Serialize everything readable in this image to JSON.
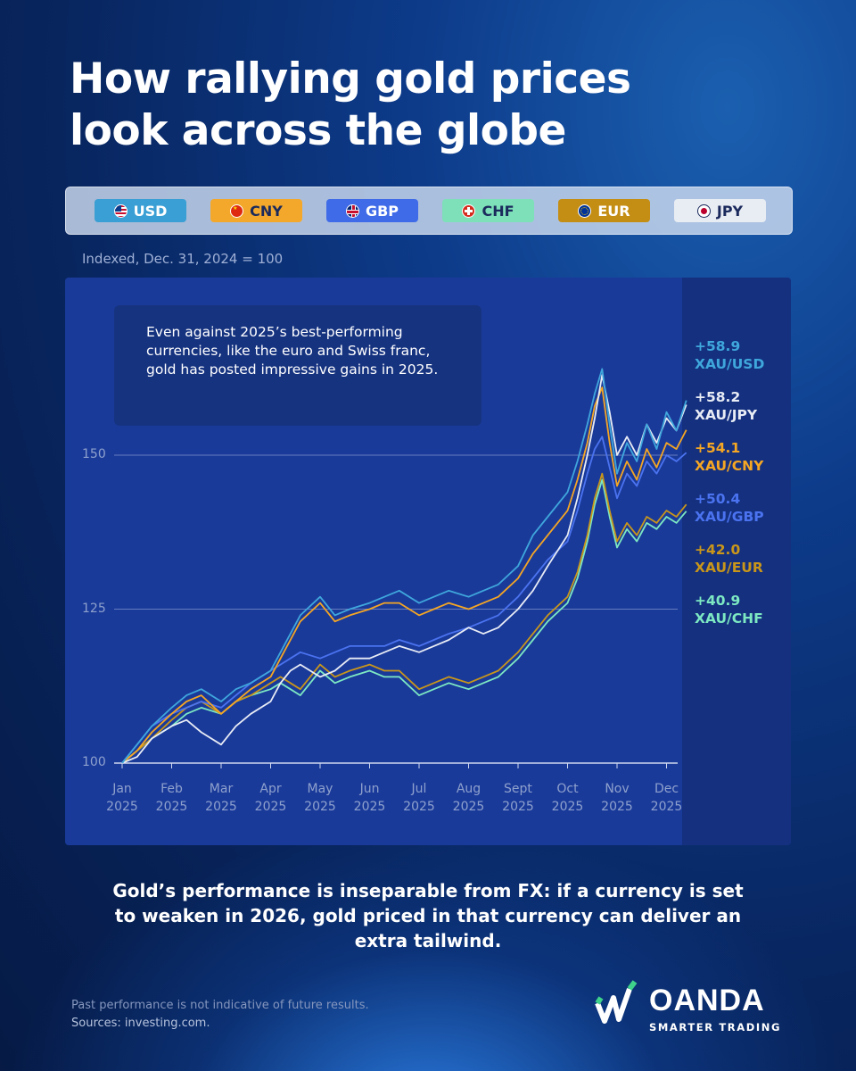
{
  "title_lines": [
    "How rallying gold prices",
    "look across the globe"
  ],
  "legend": [
    {
      "label": "USD",
      "bg": "#3a9fd4",
      "fg": "#ffffff",
      "icon": "us-flag-icon"
    },
    {
      "label": "CNY",
      "bg": "#f3a82c",
      "fg": "#1b2a5c",
      "icon": "china-flag-icon"
    },
    {
      "label": "GBP",
      "bg": "#3f6be8",
      "fg": "#ffffff",
      "icon": "uk-flag-icon"
    },
    {
      "label": "CHF",
      "bg": "#7de0b8",
      "fg": "#1b2a5c",
      "icon": "swiss-flag-icon"
    },
    {
      "label": "EUR",
      "bg": "#c48e14",
      "fg": "#ffffff",
      "icon": "eu-flag-icon"
    },
    {
      "label": "JPY",
      "bg": "#e8ecf3",
      "fg": "#1b2a5c",
      "icon": "japan-flag-icon"
    }
  ],
  "subtitle": "Indexed, Dec. 31, 2024 = 100",
  "annotation": "Even against 2025’s best-performing currencies, like the euro and Swiss franc, gold has posted impressive gains in 2025.",
  "bottom_text": "Gold’s performance is inseparable from FX: if a currency is set to weaken in 2026, gold priced in that currency can deliver an extra tailwind.",
  "disclaimer": "Past performance is not indicative of future results.",
  "sources": "Sources: investing.com.",
  "logo_word": "OANDA",
  "logo_tagline": "SMARTER TRADING",
  "colors": {
    "USD": "#3fa7dc",
    "JPY": "#e8ecf5",
    "CNY": "#f5a623",
    "GBP": "#4b73f0",
    "EUR": "#c9961a",
    "CHF": "#7de8c2"
  },
  "chart_data": {
    "type": "line",
    "ylim": [
      100,
      160
    ],
    "yticks": [
      100,
      125,
      150
    ],
    "x_tick_labels": [
      [
        "Jan",
        "2025"
      ],
      [
        "Feb",
        "2025"
      ],
      [
        "Mar",
        "2025"
      ],
      [
        "Apr",
        "2025"
      ],
      [
        "May",
        "2025"
      ],
      [
        "Jun",
        "2025"
      ],
      [
        "Jul",
        "2025"
      ],
      [
        "Aug",
        "2025"
      ],
      [
        "Sept",
        "2025"
      ],
      [
        "Oct",
        "2025"
      ],
      [
        "Nov",
        "2025"
      ],
      [
        "Dec",
        "2025"
      ]
    ],
    "x_months": [
      0,
      1,
      2,
      3,
      4,
      5,
      6,
      7,
      8,
      9,
      10,
      11
    ],
    "series": [
      {
        "name": "XAU/USD",
        "end_label": "+58.9",
        "color_key": "USD",
        "x": [
          0,
          0.3,
          0.6,
          1,
          1.3,
          1.6,
          2,
          2.3,
          2.6,
          3,
          3.2,
          3.4,
          3.6,
          4,
          4.3,
          4.6,
          5,
          5.3,
          5.6,
          6,
          6.3,
          6.6,
          7,
          7.3,
          7.6,
          8,
          8.3,
          8.6,
          9,
          9.2,
          9.4,
          9.55,
          9.7,
          9.85,
          10,
          10.2,
          10.4,
          10.6,
          10.8,
          11,
          11.2,
          11.4
        ],
        "y": [
          100,
          103,
          106,
          109,
          111,
          112,
          110,
          112,
          113,
          115,
          118,
          121,
          124,
          127,
          124,
          125,
          126,
          127,
          128,
          126,
          127,
          128,
          127,
          128,
          129,
          132,
          137,
          140,
          144,
          149,
          155,
          160,
          164,
          155,
          147,
          152,
          149,
          155,
          151,
          157,
          154,
          158.9
        ]
      },
      {
        "name": "XAU/JPY",
        "end_label": "+58.2",
        "color_key": "JPY",
        "x": [
          0,
          0.3,
          0.6,
          1,
          1.3,
          1.6,
          2,
          2.3,
          2.6,
          3,
          3.2,
          3.4,
          3.6,
          4,
          4.3,
          4.6,
          5,
          5.3,
          5.6,
          6,
          6.3,
          6.6,
          7,
          7.3,
          7.6,
          8,
          8.3,
          8.6,
          9,
          9.2,
          9.4,
          9.55,
          9.7,
          9.85,
          10,
          10.2,
          10.4,
          10.6,
          10.8,
          11,
          11.2,
          11.4
        ],
        "y": [
          100,
          101,
          104,
          106,
          107,
          105,
          103,
          106,
          108,
          110,
          113,
          115,
          116,
          114,
          115,
          117,
          117,
          118,
          119,
          118,
          119,
          120,
          122,
          121,
          122,
          125,
          128,
          132,
          137,
          143,
          150,
          156,
          163,
          157,
          150,
          153,
          150,
          155,
          152,
          156,
          154,
          158.2
        ]
      },
      {
        "name": "XAU/CNY",
        "end_label": "+54.1",
        "color_key": "CNY",
        "x": [
          0,
          0.3,
          0.6,
          1,
          1.3,
          1.6,
          2,
          2.3,
          2.6,
          3,
          3.2,
          3.4,
          3.6,
          4,
          4.3,
          4.6,
          5,
          5.3,
          5.6,
          6,
          6.3,
          6.6,
          7,
          7.3,
          7.6,
          8,
          8.3,
          8.6,
          9,
          9.2,
          9.4,
          9.55,
          9.7,
          9.85,
          10,
          10.2,
          10.4,
          10.6,
          10.8,
          11,
          11.2,
          11.4
        ],
        "y": [
          100,
          102,
          105,
          108,
          110,
          111,
          108,
          110,
          112,
          114,
          117,
          120,
          123,
          126,
          123,
          124,
          125,
          126,
          126,
          124,
          125,
          126,
          125,
          126,
          127,
          130,
          134,
          137,
          141,
          146,
          152,
          158,
          161,
          152,
          145,
          149,
          146,
          151,
          148,
          152,
          151,
          154.1
        ]
      },
      {
        "name": "XAU/GBP",
        "end_label": "+50.4",
        "color_key": "GBP",
        "x": [
          0,
          0.3,
          0.6,
          1,
          1.3,
          1.6,
          2,
          2.3,
          2.6,
          3,
          3.2,
          3.4,
          3.6,
          4,
          4.3,
          4.6,
          5,
          5.3,
          5.6,
          6,
          6.3,
          6.6,
          7,
          7.3,
          7.6,
          8,
          8.3,
          8.6,
          9,
          9.2,
          9.4,
          9.55,
          9.7,
          9.85,
          10,
          10.2,
          10.4,
          10.6,
          10.8,
          11,
          11.2,
          11.4
        ],
        "y": [
          100,
          103,
          106,
          108,
          109,
          110,
          109,
          111,
          113,
          115,
          116,
          117,
          118,
          117,
          118,
          119,
          119,
          119,
          120,
          119,
          120,
          121,
          122,
          123,
          124,
          127,
          130,
          133,
          136,
          141,
          147,
          151,
          153,
          148,
          143,
          147,
          145,
          149,
          147,
          150,
          149,
          150.4
        ]
      },
      {
        "name": "XAU/EUR",
        "end_label": "+42.0",
        "color_key": "EUR",
        "x": [
          0,
          0.3,
          0.6,
          1,
          1.3,
          1.6,
          2,
          2.3,
          2.6,
          3,
          3.2,
          3.4,
          3.6,
          4,
          4.3,
          4.6,
          5,
          5.3,
          5.6,
          6,
          6.3,
          6.6,
          7,
          7.3,
          7.6,
          8,
          8.3,
          8.6,
          9,
          9.2,
          9.4,
          9.55,
          9.7,
          9.85,
          10,
          10.2,
          10.4,
          10.6,
          10.8,
          11,
          11.2,
          11.4
        ],
        "y": [
          100,
          102,
          104,
          107,
          109,
          110,
          108,
          110,
          111,
          113,
          114,
          113,
          112,
          116,
          114,
          115,
          116,
          115,
          115,
          112,
          113,
          114,
          113,
          114,
          115,
          118,
          121,
          124,
          127,
          131,
          137,
          143,
          147,
          141,
          136,
          139,
          137,
          140,
          139,
          141,
          140,
          142.0
        ]
      },
      {
        "name": "XAU/CHF",
        "end_label": "+40.9",
        "color_key": "CHF",
        "x": [
          0,
          0.3,
          0.6,
          1,
          1.3,
          1.6,
          2,
          2.3,
          2.6,
          3,
          3.2,
          3.4,
          3.6,
          4,
          4.3,
          4.6,
          5,
          5.3,
          5.6,
          6,
          6.3,
          6.6,
          7,
          7.3,
          7.6,
          8,
          8.3,
          8.6,
          9,
          9.2,
          9.4,
          9.55,
          9.7,
          9.85,
          10,
          10.2,
          10.4,
          10.6,
          10.8,
          11,
          11.2,
          11.4
        ],
        "y": [
          100,
          102,
          104,
          106,
          108,
          109,
          108,
          110,
          111,
          112,
          113,
          112,
          111,
          115,
          113,
          114,
          115,
          114,
          114,
          111,
          112,
          113,
          112,
          113,
          114,
          117,
          120,
          123,
          126,
          130,
          136,
          142,
          146,
          140,
          135,
          138,
          136,
          139,
          138,
          140,
          139,
          140.9
        ]
      }
    ]
  }
}
